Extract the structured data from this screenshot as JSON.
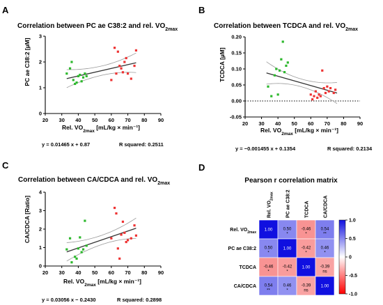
{
  "panels": {
    "A": {
      "letter": "A",
      "title_main": "Correlation between PC ae C38:2 and rel. VO",
      "title_sub": "2max",
      "ylabel": "PC ae C38:2 [µM]",
      "xlabel_main": "Rel. VO",
      "xlabel_sub": "2max",
      "xlabel_rest": " [mL/kg × min⁻¹]",
      "equation": "y = 0.01465 x + 0.87",
      "rsquared": "R squared: 0.2511"
    },
    "B": {
      "letter": "B",
      "title_main": "Correlation between TCDCA and rel. VO",
      "title_sub": "2max",
      "ylabel": "TCDCA [µM]",
      "xlabel_main": "Rel. VO",
      "xlabel_sub": "2max",
      "xlabel_rest": " [mL/kg × min⁻¹]",
      "equation": "y = −0.001455 x + 0.1354",
      "rsquared": "R squared: 0.2134"
    },
    "C": {
      "letter": "C",
      "title_main": "Correlation between CA/CDCA and rel. VO",
      "title_sub": "2max",
      "ylabel": "CA/CDCA [Ratio]",
      "xlabel_main": "Rel. VO",
      "xlabel_sub": "2max",
      "xlabel_rest": " [mL/kg × min⁻¹]",
      "equation": "y = 0.03056 x − 0.2430",
      "rsquared": "R squared: 0.2898"
    },
    "D": {
      "letter": "D",
      "title": "Pearson r correlation matrix"
    }
  },
  "colors": {
    "green": "#2db82d",
    "red": "#ee3333",
    "fit": "#333333",
    "ci": "#9a9a9a",
    "blue": "#1010e0"
  },
  "chart_data": [
    {
      "id": "A",
      "type": "scatter",
      "xlim": [
        20,
        90
      ],
      "ylim": [
        0,
        3
      ],
      "xticks": [
        20,
        30,
        40,
        50,
        60,
        70,
        80,
        90
      ],
      "yticks": [
        0,
        1,
        2,
        3
      ],
      "series": [
        {
          "x": [
            33,
            35,
            36,
            37,
            38,
            39,
            40,
            41,
            42,
            43,
            44,
            45
          ],
          "y": [
            1.55,
            1.75,
            2.0,
            1.3,
            1.15,
            1.2,
            1.45,
            1.5,
            1.25,
            1.4,
            1.55,
            1.45
          ],
          "color": "green"
        },
        {
          "x": [
            60,
            62,
            63,
            64,
            65,
            66,
            67,
            68,
            69,
            70,
            72,
            74,
            75
          ],
          "y": [
            1.3,
            2.55,
            1.55,
            2.4,
            1.85,
            1.75,
            1.6,
            2.0,
            2.15,
            1.55,
            1.35,
            1.85,
            2.45
          ],
          "color": "red"
        }
      ],
      "fit": {
        "slope": 0.01465,
        "intercept": 0.87,
        "x_range": [
          33,
          75
        ]
      },
      "ci_halfwidth": [
        0.35,
        0.18,
        0.38
      ]
    },
    {
      "id": "B",
      "type": "scatter",
      "xlim": [
        20,
        90
      ],
      "ylim": [
        -0.05,
        0.2
      ],
      "xticks": [
        20,
        30,
        40,
        50,
        60,
        70,
        80,
        90
      ],
      "yticks": [
        -0.05,
        0.0,
        0.05,
        0.1,
        0.15,
        0.2
      ],
      "ytick_labels": [
        "-0.05",
        "0.00",
        "0.05",
        "0.10",
        "0.15",
        "0.20"
      ],
      "zero_line": true,
      "series": [
        {
          "x": [
            34,
            36,
            38,
            39,
            40,
            42,
            43,
            44,
            45,
            46,
            41
          ],
          "y": [
            0.045,
            0.015,
            0.08,
            0.1,
            0.02,
            0.13,
            0.185,
            0.09,
            0.11,
            0.12,
            0.095
          ],
          "color": "green"
        },
        {
          "x": [
            60,
            61,
            62,
            63,
            64,
            65,
            66,
            67,
            68,
            69,
            70,
            71,
            72,
            74,
            75
          ],
          "y": [
            0.02,
            0.005,
            0.015,
            0.03,
            0.01,
            0.02,
            0.015,
            0.095,
            0.04,
            0.025,
            0.045,
            0.03,
            0.04,
            0.025,
            0.035
          ],
          "color": "red"
        }
      ],
      "fit": {
        "slope": -0.001455,
        "intercept": 0.1354,
        "x_range": [
          33,
          76
        ]
      },
      "ci_halfwidth": [
        0.035,
        0.012,
        0.033
      ]
    },
    {
      "id": "C",
      "type": "scatter",
      "xlim": [
        20,
        90
      ],
      "ylim": [
        0,
        4
      ],
      "xticks": [
        20,
        30,
        40,
        50,
        60,
        70,
        80,
        90
      ],
      "yticks": [
        0,
        1,
        2,
        3,
        4
      ],
      "series": [
        {
          "x": [
            33,
            35,
            36,
            38,
            39,
            40,
            41,
            42,
            43,
            44,
            45
          ],
          "y": [
            0.9,
            1.5,
            0.2,
            0.5,
            0.4,
            0.95,
            1.55,
            0.75,
            0.9,
            2.45,
            1.1
          ],
          "color": "green"
        },
        {
          "x": [
            60,
            62,
            63,
            64,
            65,
            66,
            67,
            68,
            69,
            70,
            72,
            74,
            75
          ],
          "y": [
            1.5,
            3.15,
            2.85,
            0.95,
            0.4,
            1.7,
            2.4,
            1.8,
            1.3,
            1.4,
            1.5,
            2.2,
            1.65
          ],
          "color": "red"
        }
      ],
      "fit": {
        "slope": 0.03056,
        "intercept": -0.243,
        "x_range": [
          33,
          75
        ]
      },
      "ci_halfwidth": [
        0.5,
        0.25,
        0.55
      ]
    },
    {
      "id": "D",
      "type": "heatmap",
      "rows": [
        "Rel. VO2max",
        "PC ae C38:2",
        "TCDCA",
        "CA/CDCA"
      ],
      "row_label_main": [
        "Rel. VO",
        "PC ae C38:2",
        "TCDCA",
        "CA/CDCA"
      ],
      "row_label_sub": [
        "2max",
        "",
        "",
        ""
      ],
      "columns": [
        "Rel. VO2max",
        "PC ae C38:2",
        "TCDCA",
        "CA/CDCA"
      ],
      "values": [
        [
          1.0,
          0.5,
          -0.46,
          0.54
        ],
        [
          0.5,
          1.0,
          -0.42,
          0.46
        ],
        [
          -0.46,
          -0.42,
          1.0,
          -0.39
        ],
        [
          0.54,
          0.46,
          -0.39,
          1.0
        ]
      ],
      "value_labels": [
        [
          "1.00",
          "0.50",
          "-0.46",
          "0.54"
        ],
        [
          "0.50",
          "1.00",
          "-0.42",
          "0.46"
        ],
        [
          "-0.46",
          "-0.42",
          "1.00",
          "-0.39"
        ],
        [
          "0.54",
          "0.46",
          "-0.39",
          "1.00"
        ]
      ],
      "significance": [
        [
          "",
          "*",
          "*",
          "**"
        ],
        [
          "*",
          "",
          "*",
          "*"
        ],
        [
          "*",
          "*",
          "",
          "ns"
        ],
        [
          "**",
          "*",
          "ns",
          ""
        ]
      ],
      "colorbar": {
        "range": [
          -1.0,
          1.0
        ],
        "ticks": [
          "1.0",
          "0.5",
          "0",
          "-0.5",
          "-1.0"
        ]
      }
    }
  ]
}
